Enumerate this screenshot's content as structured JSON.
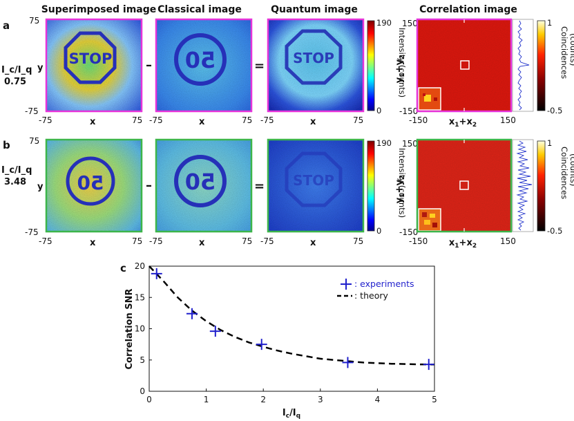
{
  "panels": {
    "a": "a",
    "b": "b",
    "c": "c"
  },
  "column_titles": [
    "Superimposed image",
    "Classical image",
    "Quantum image",
    "Correlation image"
  ],
  "operators": {
    "minus": "–",
    "equals": "="
  },
  "rows": [
    {
      "ratio_label": "I_c/I_q",
      "ratio_value": "0.75",
      "frame_color": "#e633d9",
      "superimposed_text": "STOP",
      "classical_text": "50",
      "quantum_text": "STOP"
    },
    {
      "ratio_label": "I_c/I_q",
      "ratio_value": "3.48",
      "frame_color": "#3cb54a",
      "superimposed_text": "50",
      "classical_text": "50",
      "quantum_text": "STOP"
    }
  ],
  "image_axes": {
    "x_label": "x",
    "y_label": "y",
    "tick_min": "-75",
    "tick_max": "75"
  },
  "intensity_colorbar": {
    "label": "Intensity (counts)",
    "max": "190",
    "min": "0"
  },
  "correlation_axes": {
    "x_label": "x1+x2",
    "y_label": "y1+y2",
    "tick_min": "-150",
    "tick_max": "150"
  },
  "coincidence_colorbar": {
    "label": "Coincidences\n(counts)",
    "max": "1",
    "min": "-0.5"
  },
  "chart_data": {
    "type": "scatter",
    "title": "",
    "xlabel": "I_c/I_q",
    "ylabel": "Correlation SNR",
    "xlim": [
      0,
      5
    ],
    "ylim": [
      0,
      20
    ],
    "xticks": [
      0,
      1,
      2,
      3,
      4,
      5
    ],
    "yticks": [
      0,
      5,
      10,
      15,
      20
    ],
    "series": [
      {
        "name": ": experiments",
        "marker": "plus",
        "color": "#1f1fcc",
        "x": [
          0.13,
          0.75,
          1.16,
          1.97,
          3.48,
          4.9
        ],
        "y": [
          18.8,
          12.4,
          9.6,
          7.5,
          4.6,
          4.3
        ]
      },
      {
        "name": ": theory",
        "style": "dashed",
        "color": "#000000",
        "x": [
          0.0,
          0.25,
          0.5,
          0.75,
          1.0,
          1.25,
          1.5,
          1.75,
          2.0,
          2.25,
          2.5,
          2.75,
          3.0,
          3.25,
          3.5,
          3.75,
          4.0,
          4.25,
          4.5,
          4.75,
          5.0
        ],
        "y": [
          20.0,
          17.6,
          15.0,
          12.9,
          11.2,
          9.8,
          8.7,
          7.8,
          7.1,
          6.5,
          6.0,
          5.6,
          5.2,
          5.0,
          4.8,
          4.6,
          4.5,
          4.4,
          4.35,
          4.3,
          4.28
        ]
      }
    ],
    "legend_position": "top-right"
  }
}
